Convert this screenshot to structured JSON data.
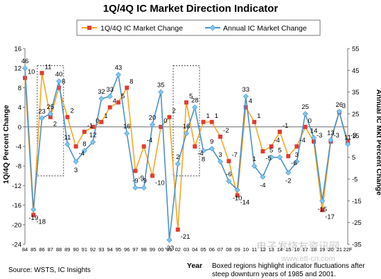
{
  "chart_data": {
    "type": "line",
    "title": "1Q/4Q IC Market Direction Indicator",
    "xlabel": "Year",
    "ylabel_left": "1Q/4Q Percent Change",
    "ylabel_right": "Annual IC Mkt Percent Change",
    "categories": [
      "84",
      "85",
      "86",
      "87",
      "88",
      "89",
      "90",
      "91",
      "92",
      "93",
      "94",
      "95",
      "96",
      "97",
      "98",
      "99",
      "00",
      "01",
      "02",
      "03",
      "04",
      "05",
      "06",
      "07",
      "08",
      "09",
      "10",
      "11",
      "12",
      "13",
      "14",
      "15",
      "16",
      "17",
      "18",
      "19",
      "20",
      "21",
      "22F"
    ],
    "left_axis": {
      "ylim": [
        -24,
        16
      ],
      "ticks": [
        16,
        12,
        8,
        4,
        0,
        -4,
        -8,
        -12,
        -16,
        -20,
        -24
      ]
    },
    "right_axis": {
      "ylim": [
        -35,
        55
      ],
      "ticks": [
        55,
        45,
        35,
        25,
        15,
        5,
        -5,
        -15,
        -25,
        -35
      ]
    },
    "series": [
      {
        "name": "1Q/4Q IC Market Change",
        "axis": "left",
        "color": "#f5a623",
        "marker_color": "#e03c31",
        "values": [
          10,
          -18,
          11,
          2,
          8,
          2,
          -4,
          -1,
          0,
          1,
          4,
          5,
          8,
          -9,
          -4,
          -10,
          0,
          2,
          -21,
          5,
          -4,
          1,
          1,
          -2,
          -7,
          -14,
          4,
          1,
          -5,
          -4,
          -1,
          -6,
          -4,
          0,
          -3,
          -17,
          -3,
          3,
          -3
        ]
      },
      {
        "name": "Annual IC Market Change",
        "axis": "right",
        "color": "#4a90c8",
        "marker_color": "#7ec8f0",
        "values": [
          46,
          -19,
          23,
          25,
          40,
          11,
          3,
          8,
          12,
          32,
          33,
          43,
          16,
          -9,
          -9,
          20,
          35,
          -33,
          2,
          16,
          28,
          8,
          9,
          3,
          -6,
          -10,
          33,
          1,
          -4,
          5,
          5,
          -2,
          3,
          25,
          14,
          -15,
          13,
          26,
          11
        ]
      }
    ],
    "data_labels": {
      "quarterly": [
        "10",
        "-18",
        "11",
        "2",
        "8",
        "2",
        "-4",
        "-1",
        "0",
        "1",
        "4",
        "5",
        "8",
        "-9",
        "-4",
        "-10",
        "0",
        "2",
        "-21",
        "5",
        "-4",
        "1",
        "1",
        "-2",
        "-7",
        "-14",
        "4",
        "1",
        "-5",
        "-4",
        "-1",
        "-6",
        "-4",
        "0",
        "-3",
        "-17",
        "-3",
        "3",
        "-3"
      ],
      "annual": [
        "46",
        "-19",
        "23",
        "25",
        "40",
        "11",
        "3",
        "8",
        "12",
        "32",
        "33",
        "43",
        "16",
        "-9",
        "-9",
        "20",
        "35",
        "-33",
        "2",
        "16",
        "28",
        "8",
        "9",
        "3",
        "-6",
        "-10",
        "33",
        "1",
        "-4",
        "5",
        "5",
        "-2",
        "3",
        "25",
        "14",
        "-15",
        "13",
        "26",
        "11"
      ]
    },
    "boxed_regions": [
      [
        "86",
        "88"
      ],
      [
        "02",
        "04"
      ]
    ],
    "legend_position": "top-center",
    "grid": false
  },
  "footer": {
    "source": "Source: WSTS, IC Insights",
    "note_line1": "Boxed  regions highlight indicator fluctuations after",
    "note_line2": "steep downturn years of 1985 and 2001.",
    "watermark_top": "电子发烧友资讯网",
    "watermark_bottom": "www.ett-cn.com"
  }
}
